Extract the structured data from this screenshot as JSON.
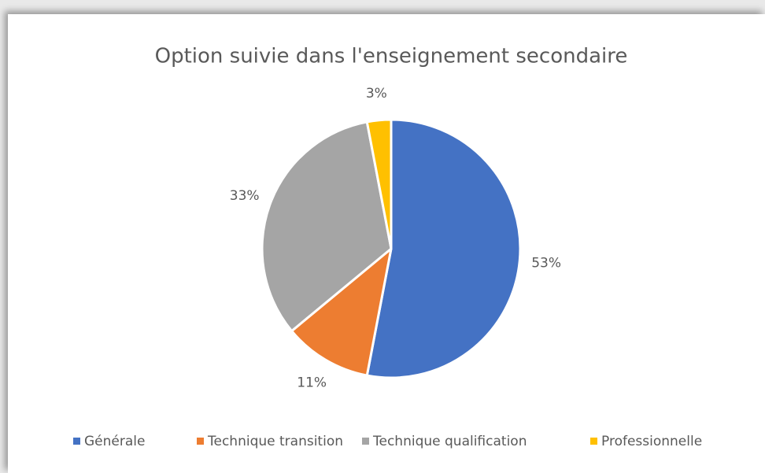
{
  "chart_data": {
    "type": "pie",
    "title": "Option suivie dans l'enseignement secondaire",
    "categories": [
      "Générale",
      "Technique transition",
      "Technique qualification",
      "Professionnelle"
    ],
    "values": [
      53,
      11,
      33,
      3
    ],
    "value_labels": [
      "53%",
      "11%",
      "33%",
      "3%"
    ],
    "colors": [
      "#4472c4",
      "#ed7d31",
      "#a5a5a5",
      "#ffc000"
    ],
    "legend": "bottom"
  }
}
